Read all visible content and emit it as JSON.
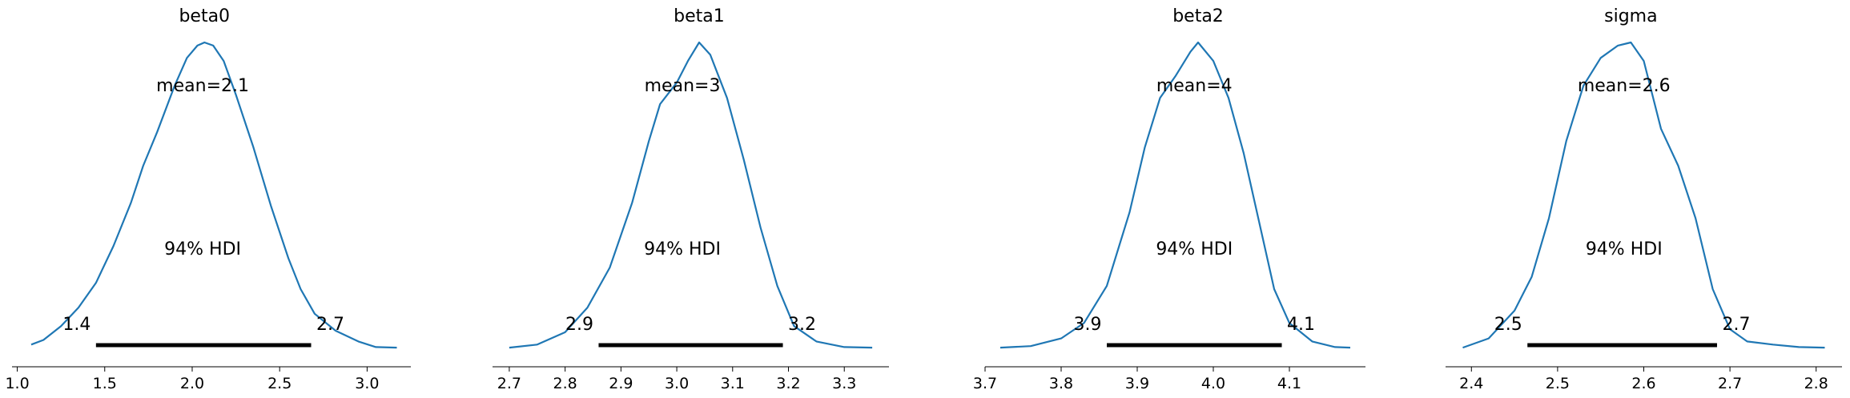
{
  "chart_data": [
    {
      "type": "line",
      "title": "beta0",
      "mean_label": "mean=2.1",
      "hdi_label": "94% HDI",
      "hdi": {
        "low": 1.45,
        "high": 2.68,
        "low_label": "1.4",
        "high_label": "2.7"
      },
      "xlim": [
        0.97,
        3.25
      ],
      "xticks": [
        1.0,
        1.5,
        2.0,
        2.5,
        3.0
      ],
      "xtick_labels": [
        "1.0",
        "1.5",
        "2.0",
        "2.5",
        "3.0"
      ],
      "density": {
        "x": [
          1.08,
          1.15,
          1.25,
          1.35,
          1.45,
          1.55,
          1.65,
          1.72,
          1.8,
          1.9,
          1.97,
          2.03,
          2.07,
          2.12,
          2.18,
          2.25,
          2.35,
          2.45,
          2.55,
          2.62,
          2.7,
          2.82,
          2.95,
          3.05,
          3.17
        ],
        "y": [
          0.02,
          0.035,
          0.08,
          0.14,
          0.22,
          0.34,
          0.48,
          0.6,
          0.71,
          0.86,
          0.95,
          0.99,
          1.0,
          0.99,
          0.94,
          0.83,
          0.66,
          0.47,
          0.3,
          0.2,
          0.12,
          0.065,
          0.03,
          0.012,
          0.01
        ]
      },
      "hdi_label_x": 2.06,
      "hdi_label_y": 0.32
    },
    {
      "type": "line",
      "title": "beta1",
      "mean_label": "mean=3",
      "hdi_label": "94% HDI",
      "hdi": {
        "low": 2.86,
        "high": 3.19,
        "low_label": "2.9",
        "high_label": "3.2"
      },
      "xlim": [
        2.67,
        3.38
      ],
      "xticks": [
        2.7,
        2.8,
        2.9,
        3.0,
        3.1,
        3.2,
        3.3
      ],
      "xtick_labels": [
        "2.7",
        "2.8",
        "2.9",
        "3.0",
        "3.1",
        "3.2",
        "3.3"
      ],
      "density": {
        "x": [
          2.7,
          2.75,
          2.8,
          2.84,
          2.88,
          2.92,
          2.95,
          2.97,
          3.0,
          3.02,
          3.04,
          3.06,
          3.09,
          3.12,
          3.15,
          3.18,
          3.21,
          3.25,
          3.3,
          3.35
        ],
        "y": [
          0.01,
          0.02,
          0.06,
          0.14,
          0.27,
          0.48,
          0.68,
          0.8,
          0.87,
          0.94,
          1.0,
          0.96,
          0.82,
          0.62,
          0.4,
          0.21,
          0.08,
          0.03,
          0.012,
          0.01
        ]
      },
      "hdi_label_x": 3.01,
      "hdi_label_y": 0.32
    },
    {
      "type": "line",
      "title": "beta2",
      "mean_label": "mean=4",
      "hdi_label": "94% HDI",
      "hdi": {
        "low": 3.86,
        "high": 4.09,
        "low_label": "3.9",
        "high_label": "4.1"
      },
      "xlim": [
        3.7,
        4.2
      ],
      "xticks": [
        3.7,
        3.8,
        3.9,
        4.0,
        4.1
      ],
      "xtick_labels": [
        "3.7",
        "3.8",
        "3.9",
        "4.0",
        "4.1"
      ],
      "density": {
        "x": [
          3.72,
          3.76,
          3.8,
          3.83,
          3.86,
          3.89,
          3.91,
          3.93,
          3.95,
          3.97,
          3.98,
          4.0,
          4.02,
          4.04,
          4.06,
          4.08,
          4.1,
          4.13,
          4.16,
          4.18
        ],
        "y": [
          0.01,
          0.015,
          0.04,
          0.09,
          0.21,
          0.45,
          0.66,
          0.82,
          0.89,
          0.97,
          1.0,
          0.94,
          0.82,
          0.64,
          0.42,
          0.2,
          0.09,
          0.03,
          0.012,
          0.01
        ]
      },
      "hdi_label_x": 3.975,
      "hdi_label_y": 0.32
    },
    {
      "type": "line",
      "title": "sigma",
      "mean_label": "mean=2.6",
      "hdi_label": "94% HDI",
      "hdi": {
        "low": 2.465,
        "high": 2.685,
        "low_label": "2.5",
        "high_label": "2.7"
      },
      "xlim": [
        2.37,
        2.83
      ],
      "xticks": [
        2.4,
        2.5,
        2.6,
        2.7,
        2.8
      ],
      "xtick_labels": [
        "2.4",
        "2.5",
        "2.6",
        "2.7",
        "2.8"
      ],
      "density": {
        "x": [
          2.39,
          2.42,
          2.45,
          2.47,
          2.49,
          2.51,
          2.53,
          2.55,
          2.57,
          2.585,
          2.6,
          2.62,
          2.64,
          2.66,
          2.68,
          2.7,
          2.72,
          2.75,
          2.78,
          2.81
        ],
        "y": [
          0.01,
          0.04,
          0.13,
          0.24,
          0.43,
          0.68,
          0.86,
          0.95,
          0.99,
          1.0,
          0.94,
          0.72,
          0.6,
          0.43,
          0.2,
          0.07,
          0.03,
          0.02,
          0.012,
          0.01
        ]
      },
      "hdi_label_x": 2.577,
      "hdi_label_y": 0.32
    }
  ],
  "colors": {
    "kde": "#1f77b4",
    "hdi": "#000000",
    "axis": "#000000"
  }
}
